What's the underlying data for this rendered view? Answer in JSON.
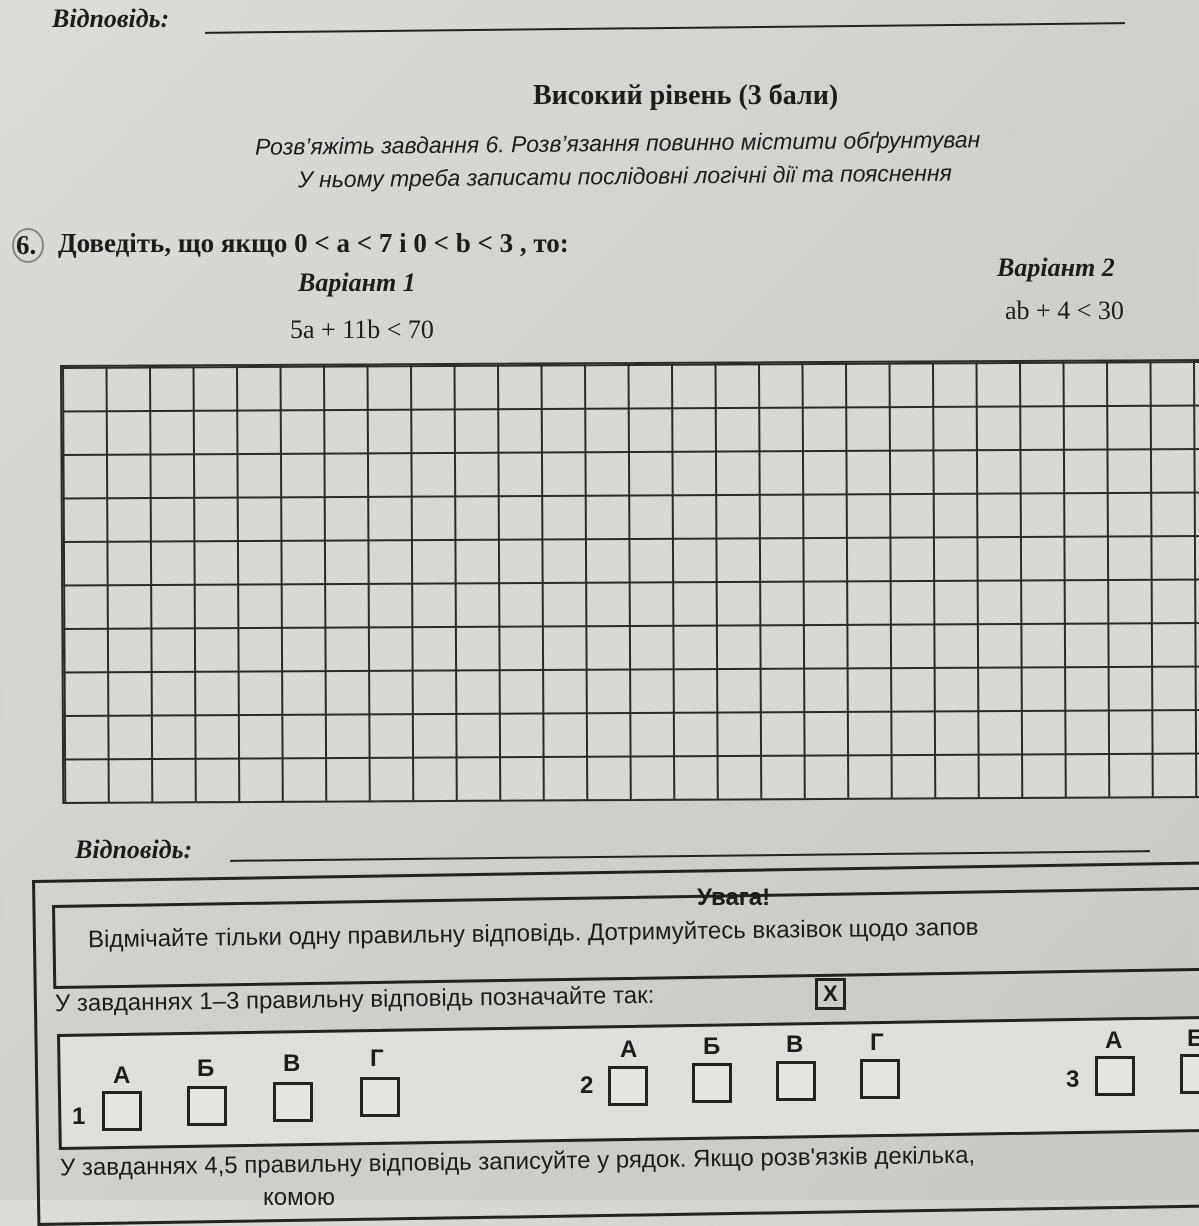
{
  "top_answer_label": "Відповідь:",
  "section_title": "Високий рівень (3 бали)",
  "instructions": [
    "Розв’яжіть завдання 6. Розв’язання повинно містити обґрунтуван",
    "У ньому треба записати послідовні логічні дії та пояснення"
  ],
  "task": {
    "number": "6.",
    "text": "Доведіть, що якщо 0 < a < 7 і 0 < b < 3 , то:",
    "variant1_title": "Варіант 1",
    "variant1_expr": "5a + 11b < 70",
    "variant2_title": "Варіант 2",
    "variant2_expr": "ab + 4 < 30"
  },
  "answer_label": "Відповідь:",
  "notice": {
    "title": "Увага!",
    "text": "Відмічайте тільки одну правильну відповідь. Дотримуйтесь вказівок щодо запов",
    "rule1": "У завданнях 1–3 правильну відповідь позначайте так:",
    "mark": "X",
    "questions": [
      {
        "number": "1",
        "options": [
          "А",
          "Б",
          "В",
          "Г"
        ]
      },
      {
        "number": "2",
        "options": [
          "А",
          "Б",
          "В",
          "Г"
        ]
      },
      {
        "number": "3",
        "options": [
          "А",
          "Б"
        ]
      }
    ],
    "rule2": "У завданнях 4,5 правильну відповідь записуйте у рядок. Якщо розв'язків декілька,",
    "rule2_cont": "комою"
  }
}
